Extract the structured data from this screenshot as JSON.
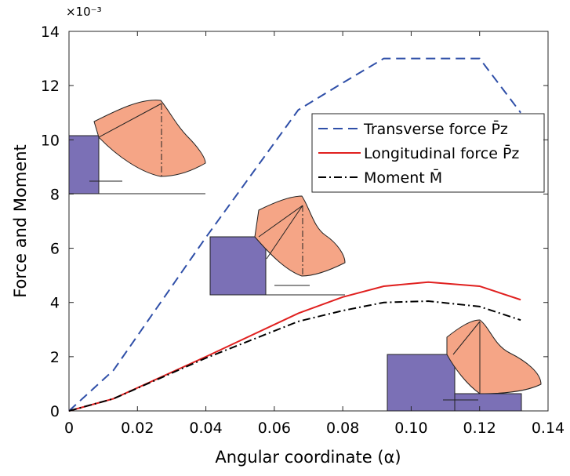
{
  "chart_data": {
    "type": "line",
    "xlabel": "Angular coordinate (α)",
    "ylabel": "Force and Moment",
    "y_multiplier": "×10⁻³",
    "x": [
      0,
      0.013,
      0.04,
      0.067,
      0.08,
      0.092,
      0.105,
      0.12,
      0.132
    ],
    "series": [
      {
        "name": "Transverse force P̄z",
        "color": "#2f4fa8",
        "dash": "dashed",
        "values": [
          0,
          1.5,
          6.4,
          11.1,
          12.1,
          13,
          13,
          13,
          11
        ]
      },
      {
        "name": "Longitudinal force P̄z",
        "color": "#e0201f",
        "dash": "solid",
        "values": [
          0,
          0.45,
          2.0,
          3.6,
          4.2,
          4.6,
          4.75,
          4.6,
          4.1
        ]
      },
      {
        "name": "Moment M̄",
        "color": "#000000",
        "dash": "dashdot",
        "values": [
          0,
          0.45,
          1.95,
          3.3,
          3.7,
          4.0,
          4.05,
          3.85,
          3.35
        ]
      }
    ],
    "xlim": [
      0,
      0.14
    ],
    "xticks": [
      0,
      0.02,
      0.04,
      0.06,
      0.08,
      {
        "value": 0.1,
        "label": "0.10"
      },
      0.12,
      0.14
    ],
    "ylim": [
      0,
      14
    ],
    "yticks": [
      0,
      2,
      4,
      6,
      8,
      10,
      12,
      14
    ],
    "grid": false,
    "legend": "upper right"
  }
}
